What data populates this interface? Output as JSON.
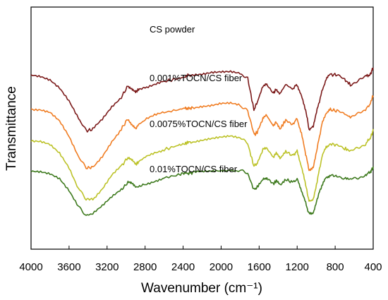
{
  "chart_data": {
    "type": "line",
    "title": "",
    "xlabel": "Wavenumber (cm⁻¹)",
    "ylabel": "Transmittance",
    "xlim": [
      4000,
      400
    ],
    "x_reversed": true,
    "x_ticks": [
      "4000",
      "3600",
      "3200",
      "2800",
      "2400",
      "2000",
      "1600",
      "1200",
      "800",
      "400"
    ],
    "y_ticks_shown": false,
    "grid": false,
    "legend": "none",
    "series": [
      {
        "name": "CS powder",
        "color": "#7b1a1a",
        "offset": 0.76,
        "points": [
          [
            4000,
            0.95
          ],
          [
            3900,
            0.935
          ],
          [
            3800,
            0.89
          ],
          [
            3700,
            0.78
          ],
          [
            3600,
            0.6
          ],
          [
            3500,
            0.36
          ],
          [
            3420,
            0.2
          ],
          [
            3350,
            0.22
          ],
          [
            3250,
            0.35
          ],
          [
            3150,
            0.52
          ],
          [
            3050,
            0.65
          ],
          [
            2980,
            0.8
          ],
          [
            2940,
            0.77
          ],
          [
            2900,
            0.72
          ],
          [
            2870,
            0.75
          ],
          [
            2800,
            0.78
          ],
          [
            2700,
            0.82
          ],
          [
            2600,
            0.86
          ],
          [
            2450,
            0.9
          ],
          [
            2380,
            0.92
          ],
          [
            2350,
            0.945
          ],
          [
            2300,
            0.94
          ],
          [
            2200,
            0.96
          ],
          [
            2100,
            0.99
          ],
          [
            2000,
            1.0
          ],
          [
            1900,
            1.0
          ],
          [
            1800,
            0.97
          ],
          [
            1720,
            0.9
          ],
          [
            1655,
            0.48
          ],
          [
            1620,
            0.58
          ],
          [
            1560,
            0.8
          ],
          [
            1520,
            0.82
          ],
          [
            1450,
            0.7
          ],
          [
            1420,
            0.76
          ],
          [
            1380,
            0.7
          ],
          [
            1320,
            0.82
          ],
          [
            1250,
            0.76
          ],
          [
            1200,
            0.82
          ],
          [
            1155,
            0.66
          ],
          [
            1110,
            0.48
          ],
          [
            1075,
            0.22
          ],
          [
            1030,
            0.25
          ],
          [
            990,
            0.48
          ],
          [
            940,
            0.72
          ],
          [
            895,
            0.9
          ],
          [
            850,
            0.95
          ],
          [
            780,
            0.95
          ],
          [
            700,
            0.88
          ],
          [
            640,
            0.82
          ],
          [
            560,
            0.86
          ],
          [
            480,
            0.93
          ],
          [
            430,
            0.95
          ],
          [
            410,
            1.02
          ],
          [
            400,
            1.04
          ]
        ]
      },
      {
        "name": "0.001%TOCN/CS fiber",
        "color": "#f07d23",
        "offset": 0.52,
        "points": [
          [
            4000,
            0.93
          ],
          [
            3900,
            0.92
          ],
          [
            3800,
            0.88
          ],
          [
            3700,
            0.76
          ],
          [
            3600,
            0.55
          ],
          [
            3500,
            0.28
          ],
          [
            3420,
            0.14
          ],
          [
            3350,
            0.15
          ],
          [
            3250,
            0.3
          ],
          [
            3150,
            0.5
          ],
          [
            3050,
            0.66
          ],
          [
            2980,
            0.8
          ],
          [
            2940,
            0.72
          ],
          [
            2900,
            0.66
          ],
          [
            2870,
            0.72
          ],
          [
            2800,
            0.78
          ],
          [
            2700,
            0.84
          ],
          [
            2600,
            0.88
          ],
          [
            2450,
            0.92
          ],
          [
            2380,
            0.94
          ],
          [
            2350,
            0.93
          ],
          [
            2300,
            0.95
          ],
          [
            2200,
            0.97
          ],
          [
            2100,
            0.98
          ],
          [
            2000,
            1.0
          ],
          [
            1900,
            1.0
          ],
          [
            1800,
            0.97
          ],
          [
            1720,
            0.9
          ],
          [
            1650,
            0.58
          ],
          [
            1620,
            0.62
          ],
          [
            1560,
            0.8
          ],
          [
            1520,
            0.84
          ],
          [
            1450,
            0.7
          ],
          [
            1420,
            0.76
          ],
          [
            1380,
            0.66
          ],
          [
            1320,
            0.78
          ],
          [
            1250,
            0.72
          ],
          [
            1200,
            0.8
          ],
          [
            1155,
            0.6
          ],
          [
            1110,
            0.32
          ],
          [
            1075,
            0.12
          ],
          [
            1030,
            0.14
          ],
          [
            990,
            0.4
          ],
          [
            940,
            0.72
          ],
          [
            895,
            0.88
          ],
          [
            850,
            0.92
          ],
          [
            780,
            0.9
          ],
          [
            700,
            0.86
          ],
          [
            640,
            0.82
          ],
          [
            560,
            0.86
          ],
          [
            480,
            0.92
          ],
          [
            430,
            1.0
          ],
          [
            410,
            1.08
          ],
          [
            400,
            1.1
          ]
        ]
      },
      {
        "name": "0.0075%TOCN/CS fiber",
        "color": "#bcc228",
        "offset": 0.28,
        "points": [
          [
            4000,
            0.93
          ],
          [
            3900,
            0.92
          ],
          [
            3800,
            0.88
          ],
          [
            3700,
            0.77
          ],
          [
            3600,
            0.58
          ],
          [
            3500,
            0.3
          ],
          [
            3420,
            0.16
          ],
          [
            3350,
            0.16
          ],
          [
            3250,
            0.3
          ],
          [
            3150,
            0.48
          ],
          [
            3050,
            0.6
          ],
          [
            2980,
            0.72
          ],
          [
            2940,
            0.68
          ],
          [
            2900,
            0.62
          ],
          [
            2870,
            0.66
          ],
          [
            2800,
            0.72
          ],
          [
            2700,
            0.78
          ],
          [
            2600,
            0.82
          ],
          [
            2450,
            0.88
          ],
          [
            2380,
            0.9
          ],
          [
            2350,
            0.92
          ],
          [
            2300,
            0.92
          ],
          [
            2200,
            0.94
          ],
          [
            2100,
            0.96
          ],
          [
            2000,
            0.98
          ],
          [
            1900,
            1.0
          ],
          [
            1800,
            0.98
          ],
          [
            1720,
            0.9
          ],
          [
            1655,
            0.6
          ],
          [
            1620,
            0.64
          ],
          [
            1560,
            0.82
          ],
          [
            1520,
            0.84
          ],
          [
            1450,
            0.72
          ],
          [
            1420,
            0.78
          ],
          [
            1380,
            0.7
          ],
          [
            1320,
            0.8
          ],
          [
            1250,
            0.74
          ],
          [
            1200,
            0.8
          ],
          [
            1155,
            0.6
          ],
          [
            1110,
            0.34
          ],
          [
            1075,
            0.14
          ],
          [
            1030,
            0.16
          ],
          [
            990,
            0.4
          ],
          [
            940,
            0.72
          ],
          [
            895,
            0.86
          ],
          [
            850,
            0.9
          ],
          [
            780,
            0.88
          ],
          [
            700,
            0.84
          ],
          [
            640,
            0.8
          ],
          [
            560,
            0.84
          ],
          [
            480,
            0.9
          ],
          [
            430,
            0.98
          ],
          [
            410,
            1.04
          ],
          [
            400,
            1.08
          ]
        ]
      },
      {
        "name": "0.01%TOCN/CS fiber",
        "color": "#3e7a1e",
        "offset": 0.04,
        "points": [
          [
            4000,
            0.96
          ],
          [
            3900,
            0.96
          ],
          [
            3800,
            0.94
          ],
          [
            3700,
            0.88
          ],
          [
            3600,
            0.72
          ],
          [
            3500,
            0.5
          ],
          [
            3420,
            0.38
          ],
          [
            3350,
            0.4
          ],
          [
            3250,
            0.5
          ],
          [
            3150,
            0.62
          ],
          [
            3050,
            0.72
          ],
          [
            2980,
            0.82
          ],
          [
            2940,
            0.8
          ],
          [
            2900,
            0.76
          ],
          [
            2870,
            0.76
          ],
          [
            2800,
            0.8
          ],
          [
            2700,
            0.84
          ],
          [
            2600,
            0.88
          ],
          [
            2450,
            0.92
          ],
          [
            2380,
            0.95
          ],
          [
            2350,
            0.94
          ],
          [
            2300,
            0.95
          ],
          [
            2200,
            0.96
          ],
          [
            2100,
            0.97
          ],
          [
            2000,
            0.98
          ],
          [
            1900,
            0.99
          ],
          [
            1800,
            0.98
          ],
          [
            1720,
            0.94
          ],
          [
            1655,
            0.72
          ],
          [
            1620,
            0.76
          ],
          [
            1560,
            0.86
          ],
          [
            1520,
            0.88
          ],
          [
            1450,
            0.8
          ],
          [
            1420,
            0.84
          ],
          [
            1380,
            0.78
          ],
          [
            1320,
            0.86
          ],
          [
            1250,
            0.82
          ],
          [
            1200,
            0.86
          ],
          [
            1155,
            0.72
          ],
          [
            1110,
            0.54
          ],
          [
            1075,
            0.4
          ],
          [
            1030,
            0.42
          ],
          [
            990,
            0.6
          ],
          [
            940,
            0.78
          ],
          [
            895,
            0.88
          ],
          [
            850,
            0.92
          ],
          [
            780,
            0.9
          ],
          [
            700,
            0.88
          ],
          [
            640,
            0.86
          ],
          [
            560,
            0.88
          ],
          [
            480,
            0.92
          ],
          [
            430,
            0.96
          ],
          [
            410,
            1.0
          ],
          [
            400,
            1.02
          ]
        ]
      }
    ]
  }
}
